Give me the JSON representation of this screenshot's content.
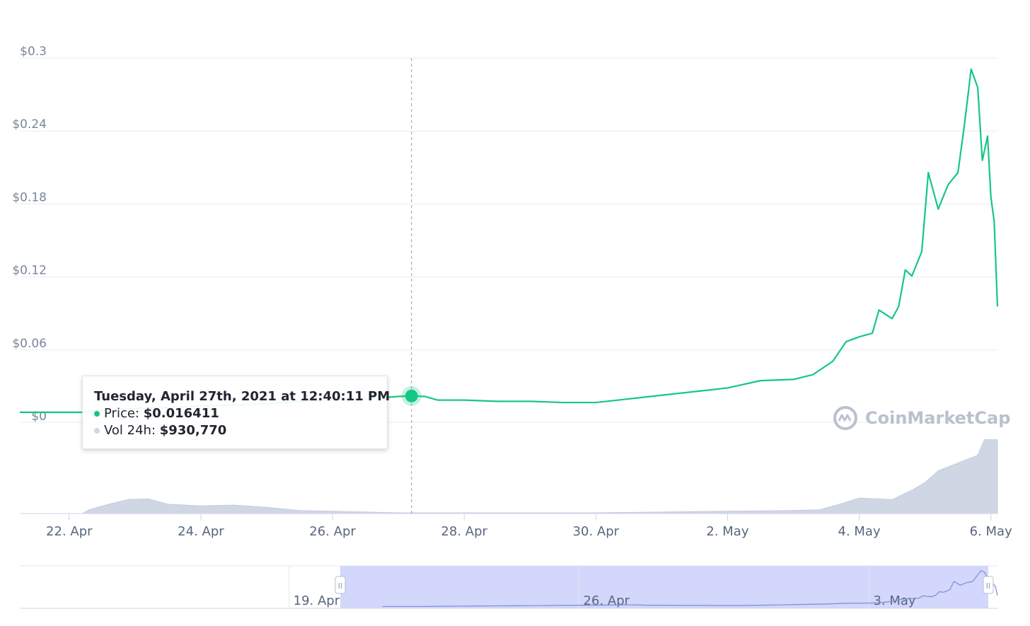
{
  "chart_data": {
    "type": "line",
    "title": "",
    "xlabel": "",
    "ylabel": "",
    "y_ticks": [
      "$0",
      "$0.06",
      "$0.12",
      "$0.18",
      "$0.24",
      "$0.3"
    ],
    "y_tick_values": [
      0,
      0.06,
      0.12,
      0.18,
      0.24,
      0.3
    ],
    "ylim": [
      0,
      0.3
    ],
    "x_ticks": [
      "22. Apr",
      "24. Apr",
      "26. Apr",
      "28. Apr",
      "30. Apr",
      "2. May",
      "4. May",
      "6. May"
    ],
    "x_tick_days": [
      22,
      24,
      26,
      28,
      30,
      32,
      34,
      36
    ],
    "xlim_days": [
      21.25,
      36.1
    ],
    "x_unit": "days in April 2021 (day 32 = 2 May)",
    "series": [
      {
        "values": [
          [
            21.25,
            0.003
          ],
          [
            22.2,
            0.003
          ],
          [
            22.6,
            0.005
          ],
          [
            23.0,
            0.006
          ],
          [
            23.5,
            0.007
          ],
          [
            24.0,
            0.008
          ],
          [
            24.5,
            0.009
          ],
          [
            25.0,
            0.01
          ],
          [
            25.5,
            0.012
          ],
          [
            26.0,
            0.013
          ],
          [
            26.5,
            0.014
          ],
          [
            27.0,
            0.016
          ],
          [
            27.2,
            0.016411
          ],
          [
            27.4,
            0.016
          ],
          [
            27.6,
            0.013
          ],
          [
            28.0,
            0.013
          ],
          [
            28.5,
            0.012
          ],
          [
            29.0,
            0.012
          ],
          [
            29.5,
            0.011
          ],
          [
            30.0,
            0.011
          ],
          [
            30.5,
            0.014
          ],
          [
            31.0,
            0.017
          ],
          [
            31.5,
            0.02
          ],
          [
            32.0,
            0.023
          ],
          [
            32.5,
            0.029
          ],
          [
            33.0,
            0.03
          ],
          [
            33.3,
            0.034
          ],
          [
            33.6,
            0.045
          ],
          [
            33.8,
            0.061
          ],
          [
            34.0,
            0.065
          ],
          [
            34.2,
            0.068
          ],
          [
            34.3,
            0.087
          ],
          [
            34.5,
            0.08
          ],
          [
            34.6,
            0.09
          ],
          [
            34.7,
            0.12
          ],
          [
            34.8,
            0.115
          ],
          [
            34.95,
            0.135
          ],
          [
            35.05,
            0.2
          ],
          [
            35.2,
            0.17
          ],
          [
            35.35,
            0.19
          ],
          [
            35.5,
            0.2
          ],
          [
            35.6,
            0.24
          ],
          [
            35.7,
            0.285
          ],
          [
            35.8,
            0.27
          ],
          [
            35.87,
            0.21
          ],
          [
            35.95,
            0.23
          ],
          [
            36.0,
            0.18
          ],
          [
            36.05,
            0.16
          ],
          [
            36.1,
            0.09
          ]
        ]
      }
    ],
    "volume": {
      "label": "Vol 24h",
      "relative_values": [
        [
          21.25,
          0
        ],
        [
          22.2,
          0
        ],
        [
          22.3,
          0.05
        ],
        [
          22.6,
          0.12
        ],
        [
          22.9,
          0.18
        ],
        [
          23.2,
          0.19
        ],
        [
          23.5,
          0.12
        ],
        [
          24.0,
          0.1
        ],
        [
          24.5,
          0.11
        ],
        [
          25.0,
          0.08
        ],
        [
          25.5,
          0.04
        ],
        [
          26.0,
          0.03
        ],
        [
          26.5,
          0.02
        ],
        [
          27.0,
          0.01
        ],
        [
          28.0,
          0.01
        ],
        [
          29.0,
          0.01
        ],
        [
          30.0,
          0.01
        ],
        [
          31.0,
          0.02
        ],
        [
          32.0,
          0.03
        ],
        [
          33.0,
          0.04
        ],
        [
          33.4,
          0.05
        ],
        [
          33.7,
          0.12
        ],
        [
          34.0,
          0.2
        ],
        [
          34.5,
          0.18
        ],
        [
          34.8,
          0.3
        ],
        [
          35.0,
          0.4
        ],
        [
          35.2,
          0.55
        ],
        [
          35.5,
          0.65
        ],
        [
          35.8,
          0.75
        ],
        [
          35.9,
          0.95
        ],
        [
          36.1,
          0.95
        ]
      ]
    },
    "grid": true,
    "legend": "none"
  },
  "tooltip": {
    "title": "Tuesday, April 27th, 2021 at 12:40:11 PM",
    "price_label": "Price:",
    "price_value": "$0.016411",
    "volume_label": "Vol 24h:",
    "volume_value": "$930,770",
    "hover_day": 27.2
  },
  "navigator": {
    "ticks": [
      "19. Apr",
      "26. Apr",
      "3. May"
    ],
    "selected_range_days": [
      21.25,
      36.1
    ],
    "handle_glyph": "II"
  },
  "watermark": {
    "text": "CoinMarketCap"
  },
  "colors": {
    "price_line": "#16c784",
    "volume_fill": "#cfd6e4",
    "navigator_selection": "#cdd3fb",
    "grid": "#e9ecf2",
    "crosshair": "#8e9bbd"
  }
}
